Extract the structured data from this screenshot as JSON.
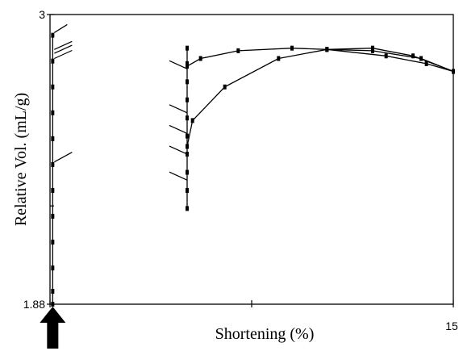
{
  "chart_data": {
    "type": "line",
    "title": "",
    "xlabel": "Shortening (%)",
    "ylabel": "Relative Vol. (mL/g)",
    "xlim": [
      0,
      15
    ],
    "ylim": [
      1.88,
      3
    ],
    "x_tick_labels": [
      "",
      "15"
    ],
    "y_tick_labels": [
      "3",
      "1.88"
    ],
    "grid": false,
    "series": [
      {
        "x": [
          0.1,
          0.1,
          0.1,
          0.1,
          0.1,
          0.1,
          0.1,
          0.1,
          0.1,
          0.1,
          0.1,
          0.1
        ],
        "y": [
          1.88,
          1.93,
          2.02,
          2.12,
          2.22,
          2.32,
          2.42,
          2.52,
          2.62,
          2.72,
          2.82,
          2.92
        ]
      },
      {
        "x": [
          5.1,
          5.1,
          5.1,
          5.1,
          5.1,
          5.1,
          5.1,
          5.1,
          5.1,
          5.1
        ],
        "y": [
          2.25,
          2.32,
          2.39,
          2.46,
          2.53,
          2.6,
          2.67,
          2.74,
          2.81,
          2.87
        ]
      },
      {
        "x": [
          5.1,
          5.6,
          7.0,
          9.0,
          10.3,
          12.0,
          13.8,
          15.0
        ],
        "y": [
          2.8,
          2.83,
          2.86,
          2.87,
          2.865,
          2.86,
          2.83,
          2.78
        ]
      },
      {
        "x": [
          5.1,
          5.3,
          6.5,
          8.5,
          10.3,
          12.0,
          13.5,
          15.0
        ],
        "y": [
          2.49,
          2.59,
          2.72,
          2.83,
          2.865,
          2.87,
          2.84,
          2.78
        ]
      },
      {
        "x": [
          10.3,
          12.5,
          14.0,
          15.0
        ],
        "y": [
          2.865,
          2.84,
          2.81,
          2.78
        ]
      }
    ],
    "arrow_position_x": 0.1
  }
}
